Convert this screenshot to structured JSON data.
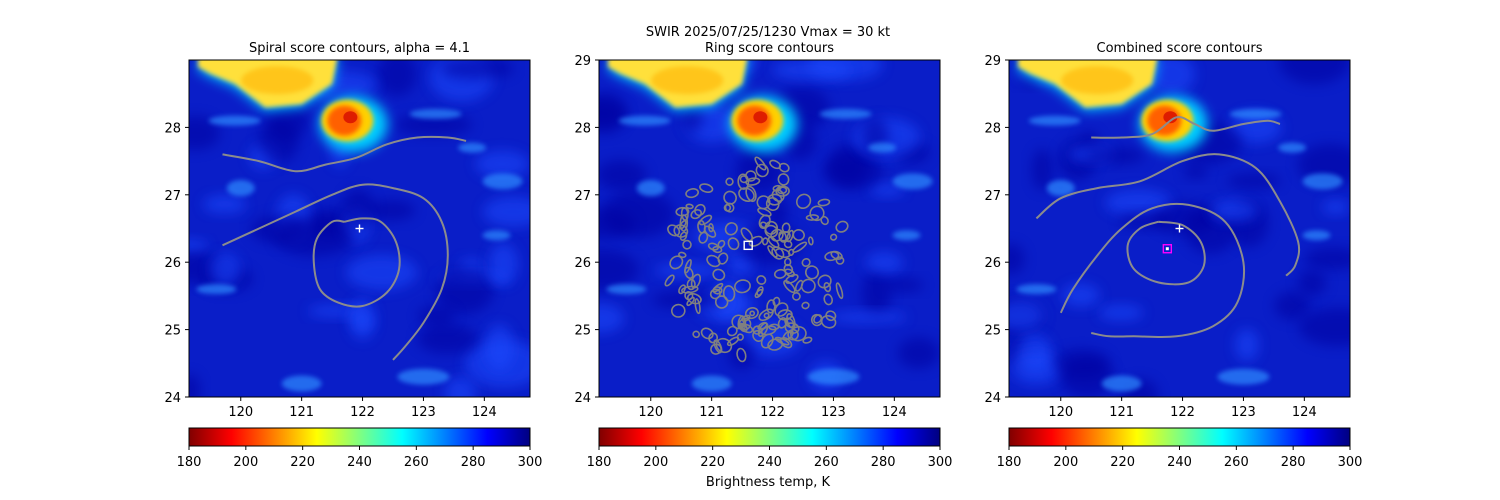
{
  "figure": {
    "suptitle": "SWIR  2025/07/25/1230    Vmax = 30 kt",
    "colorbar_label": "Brightness temp, K"
  },
  "colormap": {
    "name": "jet_r",
    "stops": [
      "#800000",
      "#ff0000",
      "#ff8000",
      "#ffff00",
      "#80ff80",
      "#00ffff",
      "#0080ff",
      "#0000ff",
      "#000080"
    ]
  },
  "chart_data": [
    {
      "type": "heatmap",
      "title": "Spiral score contours, alpha =  4.1",
      "xlim": [
        119.15,
        124.75
      ],
      "ylim": [
        24,
        29
      ],
      "xticks": [
        120,
        121,
        122,
        123,
        124
      ],
      "yticks": [
        24,
        25,
        26,
        27,
        28
      ],
      "ytick_labels": [
        "24",
        "25",
        "26",
        "27",
        "28"
      ],
      "colorbar": {
        "range": [
          180,
          300
        ],
        "ticks": [
          180,
          200,
          220,
          240,
          260,
          280,
          300
        ]
      },
      "plus_marker": {
        "lon": 121.95,
        "lat": 26.5
      },
      "square_marker": null,
      "contours": [
        [
          [
            119.7,
            27.6
          ],
          [
            120.3,
            27.5
          ],
          [
            120.9,
            27.35
          ],
          [
            121.4,
            27.45
          ],
          [
            121.9,
            27.55
          ],
          [
            122.4,
            27.75
          ],
          [
            122.9,
            27.85
          ],
          [
            123.4,
            27.85
          ],
          [
            123.7,
            27.8
          ]
        ],
        [
          [
            119.7,
            26.25
          ],
          [
            120.3,
            26.5
          ],
          [
            120.9,
            26.75
          ],
          [
            121.5,
            27.0
          ],
          [
            122.0,
            27.15
          ],
          [
            122.5,
            27.1
          ],
          [
            123.0,
            26.95
          ],
          [
            123.3,
            26.6
          ],
          [
            123.4,
            26.1
          ],
          [
            123.3,
            25.6
          ],
          [
            123.0,
            25.1
          ],
          [
            122.7,
            24.75
          ],
          [
            122.5,
            24.55
          ]
        ],
        [
          [
            121.7,
            26.6
          ],
          [
            122.0,
            26.65
          ],
          [
            122.3,
            26.6
          ],
          [
            122.55,
            26.3
          ],
          [
            122.6,
            25.9
          ],
          [
            122.4,
            25.55
          ],
          [
            122.0,
            25.35
          ],
          [
            121.6,
            25.4
          ],
          [
            121.3,
            25.6
          ],
          [
            121.2,
            26.0
          ],
          [
            121.25,
            26.35
          ],
          [
            121.5,
            26.6
          ],
          [
            121.7,
            26.6
          ]
        ]
      ]
    },
    {
      "type": "heatmap",
      "title": "Ring score contours",
      "xlim": [
        119.15,
        124.75
      ],
      "ylim": [
        24,
        29
      ],
      "xticks": [
        120,
        121,
        122,
        123,
        124
      ],
      "yticks": [
        24,
        25,
        26,
        27,
        28,
        29
      ],
      "ytick_labels": [
        "24",
        "25",
        "26",
        "27",
        "28",
        "29"
      ],
      "colorbar": {
        "range": [
          180,
          300
        ],
        "ticks": [
          180,
          200,
          220,
          240,
          260,
          280,
          300
        ]
      },
      "plus_marker": null,
      "square_marker": {
        "lon": 121.6,
        "lat": 26.25,
        "color": "#ffffff"
      },
      "ring_region": {
        "center": [
          121.75,
          26.0
        ],
        "rx": 1.5,
        "ry": 1.5,
        "inner": 0.18
      },
      "contours": []
    },
    {
      "type": "heatmap",
      "title": "Combined score contours",
      "xlim": [
        119.15,
        124.75
      ],
      "ylim": [
        24,
        29
      ],
      "xticks": [
        120,
        121,
        122,
        123,
        124
      ],
      "yticks": [
        24,
        25,
        26,
        27,
        28,
        29
      ],
      "ytick_labels": [
        "24",
        "25",
        "26",
        "27",
        "28",
        "29"
      ],
      "colorbar": {
        "range": [
          180,
          300
        ],
        "ticks": [
          180,
          200,
          220,
          240,
          260,
          280,
          300
        ]
      },
      "plus_marker": {
        "lon": 121.95,
        "lat": 26.5
      },
      "square_marker": {
        "lon": 121.75,
        "lat": 26.2,
        "color": "#ff00ff"
      },
      "contours": [
        [
          [
            120.5,
            27.85
          ],
          [
            121.0,
            27.85
          ],
          [
            121.5,
            27.9
          ],
          [
            121.9,
            28.15
          ],
          [
            122.2,
            28.05
          ],
          [
            122.5,
            27.95
          ],
          [
            123.0,
            28.05
          ],
          [
            123.4,
            28.1
          ],
          [
            123.6,
            28.05
          ]
        ],
        [
          [
            119.6,
            26.65
          ],
          [
            120.0,
            26.95
          ],
          [
            120.6,
            27.1
          ],
          [
            121.3,
            27.2
          ],
          [
            122.0,
            27.5
          ],
          [
            122.6,
            27.6
          ],
          [
            123.2,
            27.4
          ],
          [
            123.6,
            26.9
          ],
          [
            123.9,
            26.3
          ],
          [
            123.85,
            25.95
          ],
          [
            123.7,
            25.8
          ]
        ],
        [
          [
            120.0,
            25.25
          ],
          [
            120.2,
            25.6
          ],
          [
            120.6,
            26.1
          ],
          [
            121.0,
            26.5
          ],
          [
            121.5,
            26.8
          ],
          [
            122.1,
            26.85
          ],
          [
            122.7,
            26.6
          ],
          [
            123.0,
            26.0
          ],
          [
            122.9,
            25.4
          ],
          [
            122.5,
            25.05
          ],
          [
            121.9,
            24.9
          ],
          [
            121.2,
            24.9
          ],
          [
            120.8,
            24.9
          ],
          [
            120.5,
            24.95
          ]
        ],
        [
          [
            121.6,
            26.6
          ],
          [
            122.0,
            26.55
          ],
          [
            122.3,
            26.3
          ],
          [
            122.35,
            25.95
          ],
          [
            122.1,
            25.7
          ],
          [
            121.6,
            25.7
          ],
          [
            121.2,
            25.9
          ],
          [
            121.1,
            26.25
          ],
          [
            121.3,
            26.5
          ],
          [
            121.6,
            26.6
          ]
        ]
      ]
    }
  ]
}
